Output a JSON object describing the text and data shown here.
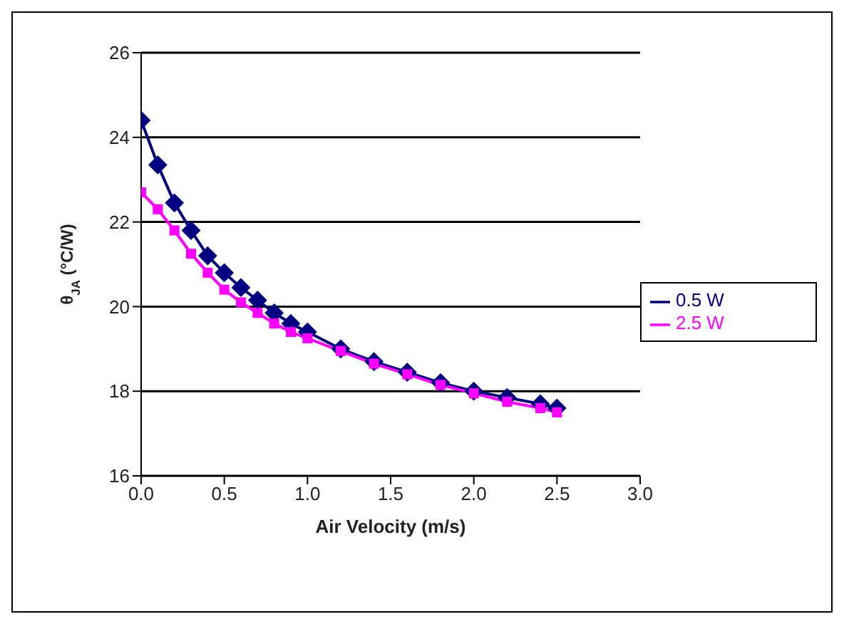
{
  "chart_data": {
    "type": "line",
    "xlabel": "Air Velocity (m/s)",
    "ylabel": "θ$_{JA}$ (°C/W)",
    "x": [
      0,
      0.1,
      0.2,
      0.3,
      0.4,
      0.5,
      0.6,
      0.7,
      0.8,
      0.9,
      1.0,
      1.2,
      1.4,
      1.6,
      1.8,
      2.0,
      2.2,
      2.4,
      2.5
    ],
    "series": [
      {
        "name": "0.5 W",
        "color": "#000080",
        "marker": "diamond",
        "values": [
          24.4,
          23.35,
          22.45,
          21.8,
          21.2,
          20.8,
          20.45,
          20.15,
          19.85,
          19.6,
          19.4,
          19.0,
          18.7,
          18.45,
          18.2,
          18.0,
          17.85,
          17.7,
          17.6
        ]
      },
      {
        "name": "2.5 W",
        "color": "#ff00ff",
        "marker": "square",
        "values": [
          22.7,
          22.3,
          21.8,
          21.25,
          20.8,
          20.4,
          20.1,
          19.85,
          19.6,
          19.4,
          19.25,
          18.95,
          18.65,
          18.4,
          18.15,
          17.95,
          17.75,
          17.6,
          17.5
        ]
      }
    ],
    "xlim": [
      0,
      3
    ],
    "xticks": [
      {
        "value": 0,
        "label": "0.0"
      },
      {
        "value": 0.5,
        "label": "0.5"
      },
      {
        "value": 1,
        "label": "1.0"
      },
      {
        "value": 1.5,
        "label": "1.5"
      },
      {
        "value": 2,
        "label": "2.0"
      },
      {
        "value": 2.5,
        "label": "2.5"
      },
      {
        "value": 3,
        "label": "3.0"
      }
    ],
    "ylim": [
      16,
      26
    ],
    "yticks": [
      16,
      18,
      20,
      22,
      24,
      26
    ],
    "grid": "y",
    "legend": "right",
    "line_style": "solid"
  }
}
